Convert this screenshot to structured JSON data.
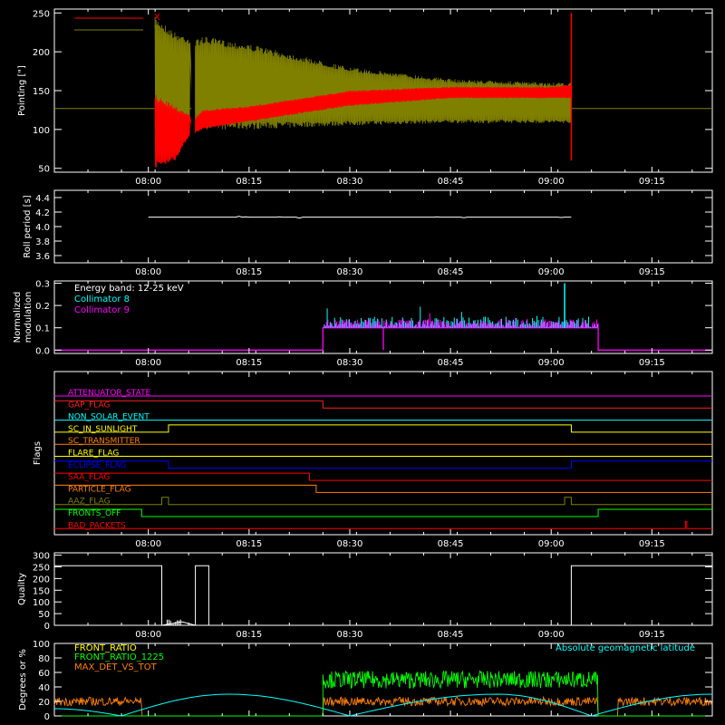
{
  "time_axis": {
    "tick_labels": [
      "08:00",
      "08:15",
      "08:30",
      "08:45",
      "09:00",
      "09:15"
    ],
    "range": [
      "07:46",
      "09:24"
    ]
  },
  "panels": {
    "pointing": {
      "ylabel": "Pointing [\"]",
      "yticks": [
        "50",
        "100",
        "150",
        "200",
        "250"
      ],
      "legend": [
        {
          "label": "X",
          "color": "#ff0000"
        },
        {
          "label": "Y",
          "color": "#808000"
        }
      ]
    },
    "roll": {
      "ylabel": "Roll period [s]",
      "yticks": [
        "3.6",
        "3.8",
        "4.0",
        "4.2",
        "4.4"
      ]
    },
    "modulation": {
      "ylabel": "Normalized",
      "ylabel2": "modulation",
      "yticks": [
        "0.0",
        "0.1",
        "0.2",
        "0.3"
      ],
      "legend": [
        {
          "label": "Energy band: 12-25 keV",
          "color": "#ffffff"
        },
        {
          "label": "Collimator 8",
          "color": "#00ffff"
        },
        {
          "label": "Collimator 9",
          "color": "#ff00ff"
        }
      ]
    },
    "flags": {
      "ylabel": "Flags",
      "names": [
        {
          "label": "ATTENUATOR_STATE",
          "color": "#ff00ff"
        },
        {
          "label": "GAP_FLAG",
          "color": "#ff2020"
        },
        {
          "label": "NON_SOLAR_EVENT",
          "color": "#00ffff"
        },
        {
          "label": "SC_IN_SUNLIGHT",
          "color": "#ffff00"
        },
        {
          "label": "SC_TRANSMITTER",
          "color": "#ff8000"
        },
        {
          "label": "FLARE_FLAG",
          "color": "#ffff00"
        },
        {
          "label": "ECLIPSE_FLAG",
          "color": "#0000ff"
        },
        {
          "label": "SAA_FLAG",
          "color": "#ff0000"
        },
        {
          "label": "PARTICLE_FLAG",
          "color": "#ff8000"
        },
        {
          "label": "AAZ_FLAG",
          "color": "#808000"
        },
        {
          "label": "FRONTS_OFF",
          "color": "#00ff00"
        },
        {
          "label": "BAD_PACKETS",
          "color": "#ff0000"
        }
      ]
    },
    "quality": {
      "ylabel": "Quality",
      "yticks": [
        "0",
        "50",
        "100",
        "150",
        "200",
        "250",
        "300"
      ]
    },
    "ratio": {
      "ylabel": "Degrees or %",
      "yticks": [
        "0",
        "20",
        "40",
        "60",
        "80",
        "100"
      ],
      "legend": [
        {
          "label": "FRONT_RATIO",
          "color": "#ffff00"
        },
        {
          "label": "FRONT_RATIO_1225",
          "color": "#00ff00"
        },
        {
          "label": "MAX_DET_VS_TOT",
          "color": "#ff8000"
        }
      ],
      "right_label": {
        "label": "Absolute geomagnetic latitude",
        "color": "#00ffff"
      }
    }
  },
  "chart_data": [
    {
      "type": "line",
      "ylabel": "Pointing [\"]",
      "ylim": [
        45,
        255
      ],
      "reference_value": 127,
      "series": [
        {
          "name": "X",
          "x": [
            "08:01",
            "08:04",
            "08:06",
            "08:07",
            "08:08",
            "08:15",
            "08:30",
            "08:45",
            "09:00",
            "09:03"
          ],
          "y_min": [
            50,
            60,
            90,
            95,
            100,
            110,
            130,
            140,
            140,
            140
          ],
          "y_max": [
            145,
            130,
            120,
            115,
            125,
            130,
            150,
            155,
            155,
            158
          ]
        },
        {
          "name": "Y",
          "x": [
            "08:01",
            "08:04",
            "08:06",
            "08:07",
            "08:08",
            "08:15",
            "08:30",
            "08:45",
            "09:00",
            "09:03"
          ],
          "y_min": [
            110,
            100,
            100,
            100,
            100,
            100,
            105,
            108,
            108,
            108
          ],
          "y_max": [
            245,
            225,
            220,
            215,
            220,
            210,
            180,
            165,
            160,
            160
          ]
        }
      ]
    },
    {
      "type": "line",
      "ylabel": "Roll period [s]",
      "ylim": [
        3.5,
        4.5
      ],
      "series": [
        {
          "x": [
            "08:00",
            "08:15",
            "08:30",
            "08:45",
            "09:00",
            "09:03"
          ],
          "y": [
            4.13,
            4.13,
            4.13,
            4.13,
            4.13,
            4.13
          ]
        }
      ]
    },
    {
      "type": "bar",
      "ylabel": "Normalized modulation",
      "ylim": [
        -0.015,
        0.31
      ],
      "series": [
        {
          "name": "Collimator 8",
          "x_range": [
            "08:26",
            "09:07"
          ],
          "typical": 0.13,
          "peak": {
            "x": "09:02",
            "y": 0.3
          }
        },
        {
          "name": "Collimator 9",
          "x_range": [
            "08:26",
            "09:07"
          ],
          "typical": 0.12,
          "step_x": "08:35"
        }
      ]
    },
    {
      "type": "line",
      "ylabel": "Flags",
      "series": [
        {
          "name": "GAP_FLAG",
          "high": [
            [
              "07:46",
              "08:26"
            ]
          ]
        },
        {
          "name": "SC_IN_SUNLIGHT",
          "high": [
            [
              "08:03",
              "09:03"
            ]
          ]
        },
        {
          "name": "ECLIPSE_FLAG",
          "high": [
            [
              "07:46",
              "08:03"
            ],
            [
              "09:03",
              "09:24"
            ]
          ]
        },
        {
          "name": "SAA_FLAG",
          "high": [
            [
              "07:46",
              "08:24"
            ]
          ]
        },
        {
          "name": "PARTICLE_FLAG",
          "high": [
            [
              "07:46",
              "08:25"
            ]
          ]
        },
        {
          "name": "AAZ_FLAG",
          "high": [
            [
              "08:02",
              "08:03"
            ],
            [
              "09:02",
              "09:03"
            ]
          ]
        },
        {
          "name": "FRONTS_OFF",
          "high": [
            [
              "07:46",
              "07:59"
            ],
            [
              "09:07",
              "09:24"
            ]
          ]
        },
        {
          "name": "BAD_PACKETS",
          "high": [
            [
              "09:20",
              "09:20"
            ]
          ]
        }
      ]
    },
    {
      "type": "line",
      "ylabel": "Quality",
      "ylim": [
        0,
        310
      ],
      "series": [
        {
          "x": [
            "07:46",
            "08:02",
            "08:02",
            "08:05",
            "08:07",
            "08:07",
            "08:09",
            "08:09",
            "09:03",
            "09:03",
            "09:24"
          ],
          "y": [
            255,
            255,
            0,
            15,
            0,
            255,
            255,
            0,
            0,
            255,
            255
          ]
        }
      ]
    },
    {
      "type": "line",
      "ylabel": "Degrees or %",
      "ylim": [
        0,
        100
      ],
      "series": [
        {
          "name": "FRONT_RATIO_1225",
          "x_range": [
            "08:26",
            "09:07"
          ],
          "typical": 50
        },
        {
          "name": "MAX_DET_VS_TOT",
          "x_range": [
            "07:46",
            "09:24"
          ],
          "typical": 20
        },
        {
          "name": "Absolute geomagnetic latitude",
          "x": [
            "07:46",
            "07:56",
            "08:12",
            "08:30",
            "08:52",
            "09:06",
            "09:24"
          ],
          "y": [
            10,
            0,
            30,
            0,
            30,
            0,
            30
          ]
        }
      ]
    }
  ]
}
